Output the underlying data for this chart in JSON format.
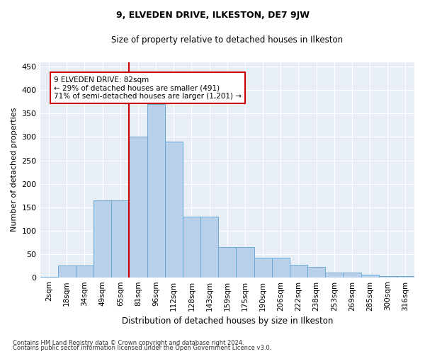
{
  "title": "9, ELVEDEN DRIVE, ILKESTON, DE7 9JW",
  "subtitle": "Size of property relative to detached houses in Ilkeston",
  "xlabel": "Distribution of detached houses by size in Ilkeston",
  "ylabel": "Number of detached properties",
  "categories": [
    "2sqm",
    "18sqm",
    "34sqm",
    "49sqm",
    "65sqm",
    "81sqm",
    "96sqm",
    "112sqm",
    "128sqm",
    "143sqm",
    "159sqm",
    "175sqm",
    "190sqm",
    "206sqm",
    "222sqm",
    "238sqm",
    "253sqm",
    "269sqm",
    "285sqm",
    "300sqm",
    "316sqm"
  ],
  "values": [
    1,
    25,
    25,
    165,
    165,
    300,
    370,
    290,
    130,
    130,
    65,
    65,
    42,
    42,
    27,
    22,
    10,
    10,
    5,
    2,
    2
  ],
  "bar_color": "#b8d0ea",
  "bar_edge_color": "#6aaad4",
  "bg_color": "#e8eef6",
  "grid_color": "#ffffff",
  "vline_index": 5,
  "vline_color": "#cc0000",
  "annotation_text": "9 ELVEDEN DRIVE: 82sqm\n← 29% of detached houses are smaller (491)\n71% of semi-detached houses are larger (1,201) →",
  "annotation_box_edgecolor": "#cc0000",
  "ylim": [
    0,
    460
  ],
  "yticks": [
    0,
    50,
    100,
    150,
    200,
    250,
    300,
    350,
    400,
    450
  ],
  "footnote1": "Contains HM Land Registry data © Crown copyright and database right 2024.",
  "footnote2": "Contains public sector information licensed under the Open Government Licence v3.0."
}
